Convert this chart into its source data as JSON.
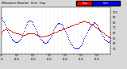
{
  "bg_color": "#d8d8d8",
  "plot_bg_color": "#ffffff",
  "humidity_color": "#0000cc",
  "temp_color": "#cc0000",
  "dot_size": 1.5,
  "ylim": [
    20,
    110
  ],
  "yticks": [
    30,
    40,
    50,
    60,
    70,
    80,
    90,
    100
  ],
  "ylabel_fontsize": 3,
  "xlabel_fontsize": 2.2,
  "grid_color": "#cccccc",
  "legend_temp_color": "#ff0000",
  "legend_hum_color": "#0000ff",
  "title_text": "Milwaukee Weather  Hum  Tmp",
  "n_xticks": 28,
  "humidity_data": [
    90,
    88,
    85,
    82,
    80,
    77,
    74,
    71,
    68,
    65,
    62,
    59,
    56,
    53,
    51,
    49,
    47,
    46,
    45,
    44,
    43,
    42,
    42,
    42,
    43,
    44,
    45,
    47,
    49,
    51,
    54,
    57,
    60,
    64,
    68,
    72,
    75,
    78,
    80,
    82,
    83,
    84,
    84,
    83,
    82,
    80,
    78,
    76,
    73,
    70,
    67,
    64,
    61,
    58,
    55,
    53,
    51,
    49,
    47,
    46,
    44,
    43,
    42,
    41,
    41,
    41,
    42,
    43,
    44,
    46,
    48,
    50,
    53,
    56,
    59,
    62,
    65,
    68,
    71,
    73,
    75,
    77,
    78,
    79,
    79,
    79,
    78,
    77,
    76,
    74,
    72,
    70,
    67,
    64,
    61,
    58,
    55,
    52,
    49,
    46,
    43,
    40,
    38,
    36,
    34,
    33,
    32,
    31,
    30,
    30,
    30,
    30,
    31,
    32,
    33,
    35,
    37,
    39,
    41,
    44,
    47,
    50,
    53,
    56,
    59,
    62,
    65,
    67,
    69,
    71,
    73,
    75,
    77,
    78,
    79,
    80,
    80,
    79,
    78,
    76,
    74,
    72,
    70,
    67,
    64,
    61,
    58,
    55,
    53,
    51,
    49,
    47,
    46,
    45,
    44,
    43,
    43,
    43,
    44,
    45
  ],
  "temp_data": [
    60,
    62,
    64,
    65,
    66,
    67,
    67,
    68,
    68,
    68,
    67,
    67,
    66,
    65,
    64,
    63,
    63,
    62,
    62,
    61,
    61,
    60,
    60,
    60,
    59,
    59,
    58,
    58,
    58,
    57,
    57,
    57,
    57,
    57,
    57,
    57,
    58,
    58,
    59,
    59,
    60,
    60,
    60,
    60,
    60,
    60,
    60,
    59,
    59,
    58,
    58,
    57,
    57,
    56,
    56,
    55,
    55,
    54,
    54,
    54,
    54,
    54,
    54,
    54,
    55,
    55,
    55,
    56,
    56,
    57,
    57,
    58,
    58,
    59,
    59,
    60,
    60,
    61,
    61,
    62,
    63,
    63,
    64,
    64,
    65,
    65,
    66,
    66,
    67,
    67,
    68,
    68,
    69,
    69,
    70,
    70,
    71,
    71,
    72,
    72,
    73,
    73,
    74,
    74,
    75,
    75,
    76,
    76,
    77,
    77,
    78,
    78,
    79,
    79,
    80,
    80,
    81,
    81,
    82,
    82,
    83,
    83,
    82,
    82,
    81,
    81,
    80,
    80,
    79,
    78,
    78,
    77,
    76,
    76,
    75,
    74,
    73,
    72,
    71,
    70,
    69,
    68,
    67,
    66,
    65,
    64,
    63,
    62,
    61,
    60,
    59,
    58,
    57,
    56,
    55,
    54,
    53,
    52,
    51,
    50
  ]
}
